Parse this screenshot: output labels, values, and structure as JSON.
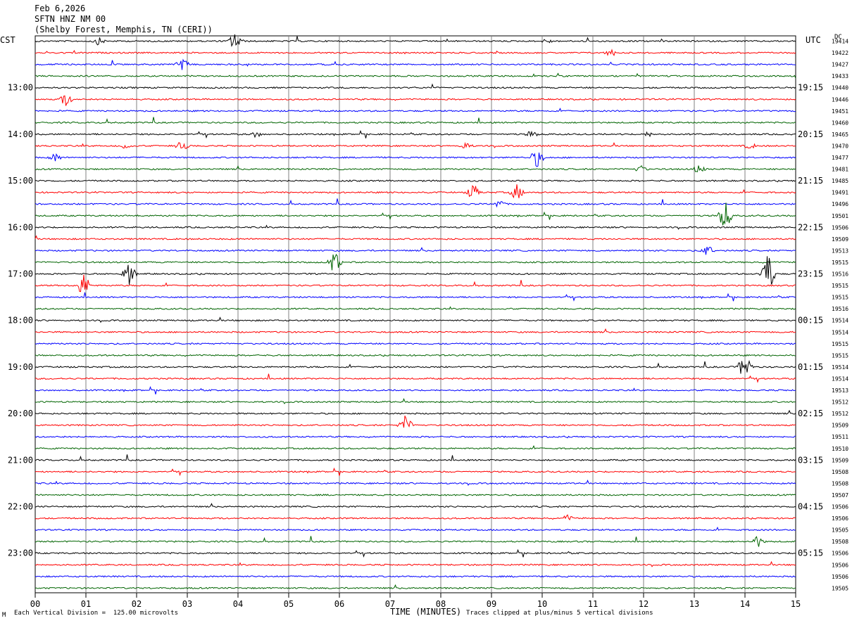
{
  "header": {
    "date": "Feb 6,2026",
    "station": "SFTN HNZ NM 00",
    "location": "(Shelby Forest, Memphis, TN (CERI))"
  },
  "left_tz": "CST",
  "right_tz": "UTC",
  "dc_label": "DC",
  "footer": {
    "scale_note": "Each Vertical Division =  125.00 microvolts",
    "clip_note": "Traces clipped at plus/minus 5 vertical divisions",
    "corner_mark": "M"
  },
  "colors": {
    "black": "#000000",
    "red": "#ff0000",
    "blue": "#0000ff",
    "green": "#006400",
    "grid": "#808080"
  },
  "chart_data": {
    "type": "line",
    "xlabel": "TIME (MINUTES)",
    "xlim": [
      0,
      15
    ],
    "x_ticks": [
      "00",
      "01",
      "02",
      "03",
      "04",
      "05",
      "06",
      "07",
      "08",
      "09",
      "10",
      "11",
      "12",
      "13",
      "14",
      "15"
    ],
    "left_hour_labels": [
      "13:00",
      "14:00",
      "15:00",
      "16:00",
      "17:00",
      "18:00",
      "19:00",
      "20:00",
      "21:00",
      "22:00",
      "23:00"
    ],
    "right_hour_labels": [
      "19:15",
      "20:15",
      "21:15",
      "22:15",
      "23:15",
      "00:15",
      "01:15",
      "02:15",
      "03:15",
      "04:15",
      "05:15"
    ],
    "trace_color_cycle": [
      "black",
      "red",
      "blue",
      "green"
    ],
    "trace_count": 48,
    "dc_offsets": [
      "19414",
      "19422",
      "19427",
      "19433",
      "19440",
      "19446",
      "19451",
      "19460",
      "19465",
      "19470",
      "19477",
      "19481",
      "19485",
      "19491",
      "19496",
      "19501",
      "19506",
      "19509",
      "19513",
      "19515",
      "19516",
      "19515",
      "19515",
      "19516",
      "19514",
      "19514",
      "19515",
      "19515",
      "19514",
      "19514",
      "19513",
      "19512",
      "19512",
      "19509",
      "19511",
      "19510",
      "19509",
      "19508",
      "19508",
      "19507",
      "19506",
      "19506",
      "19505",
      "19508",
      "19506",
      "19506",
      "19506",
      "19505"
    ],
    "events": [
      {
        "trace": 0,
        "minute": 1.25,
        "amp": 6
      },
      {
        "trace": 0,
        "minute": 3.95,
        "amp": 14
      },
      {
        "trace": 0,
        "minute": 10.1,
        "amp": 4
      },
      {
        "trace": 1,
        "minute": 11.35,
        "amp": 6
      },
      {
        "trace": 2,
        "minute": 2.9,
        "amp": 9
      },
      {
        "trace": 5,
        "minute": 0.6,
        "amp": 10
      },
      {
        "trace": 8,
        "minute": 4.35,
        "amp": 5
      },
      {
        "trace": 8,
        "minute": 9.8,
        "amp": 6
      },
      {
        "trace": 8,
        "minute": 12.1,
        "amp": 5
      },
      {
        "trace": 9,
        "minute": 2.9,
        "amp": 8
      },
      {
        "trace": 9,
        "minute": 1.8,
        "amp": 5
      },
      {
        "trace": 9,
        "minute": 8.5,
        "amp": 6
      },
      {
        "trace": 9,
        "minute": 14.1,
        "amp": 5
      },
      {
        "trace": 10,
        "minute": 0.4,
        "amp": 7
      },
      {
        "trace": 10,
        "minute": 9.9,
        "amp": 14
      },
      {
        "trace": 11,
        "minute": 11.95,
        "amp": 6
      },
      {
        "trace": 11,
        "minute": 13.1,
        "amp": 7
      },
      {
        "trace": 13,
        "minute": 8.65,
        "amp": 12
      },
      {
        "trace": 13,
        "minute": 9.5,
        "amp": 12
      },
      {
        "trace": 14,
        "minute": 9.15,
        "amp": 7
      },
      {
        "trace": 15,
        "minute": 13.6,
        "amp": 22
      },
      {
        "trace": 18,
        "minute": 13.25,
        "amp": 9
      },
      {
        "trace": 19,
        "minute": 5.9,
        "amp": 16
      },
      {
        "trace": 20,
        "minute": 1.85,
        "amp": 16
      },
      {
        "trace": 20,
        "minute": 14.45,
        "amp": 32
      },
      {
        "trace": 21,
        "minute": 0.95,
        "amp": 18
      },
      {
        "trace": 28,
        "minute": 14.0,
        "amp": 20
      },
      {
        "trace": 33,
        "minute": 7.3,
        "amp": 14
      },
      {
        "trace": 41,
        "minute": 10.5,
        "amp": 5
      },
      {
        "trace": 43,
        "minute": 14.25,
        "amp": 9
      }
    ]
  }
}
